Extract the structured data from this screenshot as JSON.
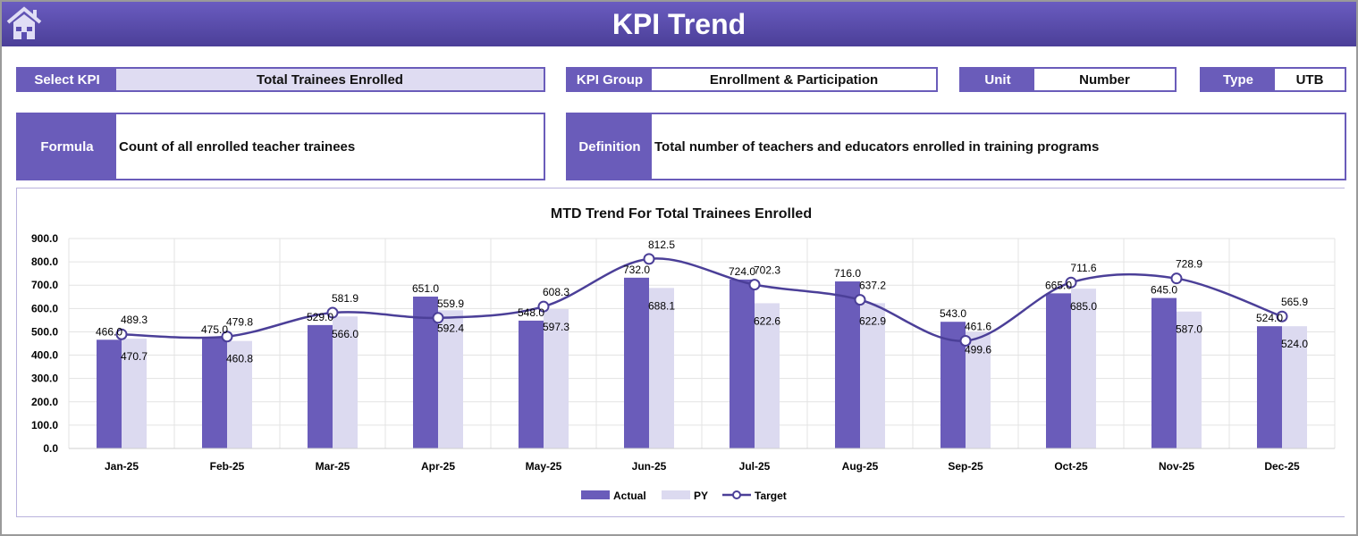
{
  "header": {
    "title": "KPI Trend",
    "home_icon": "home-icon"
  },
  "fields": {
    "select_kpi": {
      "label": "Select KPI",
      "value": "Total Trainees Enrolled"
    },
    "kpi_group": {
      "label": "KPI Group",
      "value": "Enrollment & Participation"
    },
    "unit": {
      "label": "Unit",
      "value": "Number"
    },
    "type": {
      "label": "Type",
      "value": "UTB"
    },
    "formula": {
      "label": "Formula",
      "value": "Count of all enrolled teacher trainees"
    },
    "definition": {
      "label": "Definition",
      "value": "Total number of teachers and educators enrolled in training programs"
    }
  },
  "colors": {
    "actual": "#6a5cba",
    "py": "#dcdaf0",
    "target": "#4b3f98",
    "header": "#5a4db0"
  },
  "chart_data": {
    "type": "bar",
    "title": "MTD Trend For Total Trainees Enrolled",
    "categories": [
      "Jan-25",
      "Feb-25",
      "Mar-25",
      "Apr-25",
      "May-25",
      "Jun-25",
      "Jul-25",
      "Aug-25",
      "Sep-25",
      "Oct-25",
      "Nov-25",
      "Dec-25"
    ],
    "series": [
      {
        "name": "Actual",
        "type": "bar",
        "values": [
          466.0,
          475.0,
          529.0,
          651.0,
          548.0,
          732.0,
          724.0,
          716.0,
          543.0,
          665.0,
          645.0,
          524.0
        ]
      },
      {
        "name": "PY",
        "type": "bar",
        "values": [
          470.7,
          460.8,
          566.0,
          592.4,
          597.3,
          688.1,
          622.6,
          622.9,
          499.6,
          685.0,
          587.0,
          524.0
        ]
      },
      {
        "name": "Target",
        "type": "line",
        "values": [
          489.3,
          479.8,
          581.9,
          559.9,
          608.3,
          812.5,
          702.3,
          637.2,
          461.6,
          711.6,
          728.9,
          565.9
        ]
      }
    ],
    "ylim": [
      0,
      900
    ],
    "yticks": [
      "0.0",
      "100.0",
      "200.0",
      "300.0",
      "400.0",
      "500.0",
      "600.0",
      "700.0",
      "800.0",
      "900.0"
    ],
    "grid": true,
    "legend": "bottom"
  }
}
